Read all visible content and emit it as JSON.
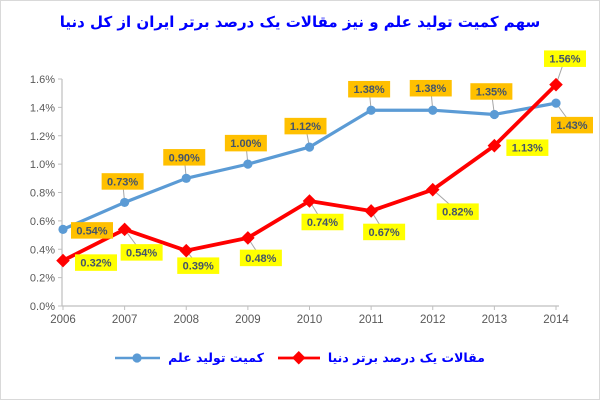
{
  "frame": {
    "bg": "#FFFFFF",
    "border_color": "#D9D9D9"
  },
  "title": {
    "text": "سهم کمیت تولید علم و نیز مقالات یک درصد برتر ایران از کل دنیا",
    "color": "#0000FF"
  },
  "chart_data": {
    "type": "line",
    "title": "سهم کمیت تولید علم و نیز مقالات یک درصد برتر ایران از کل دنیا",
    "categories": [
      "2006",
      "2007",
      "2008",
      "2009",
      "2010",
      "2011",
      "2012",
      "2013",
      "2014"
    ],
    "series": [
      {
        "name": "کمیت تولید علم",
        "color": "#5B9BD5",
        "marker": "circle",
        "label_bg": "#FFC000",
        "values": [
          0.54,
          0.73,
          0.9,
          1.0,
          1.12,
          1.38,
          1.38,
          1.35,
          1.43
        ],
        "labels": [
          "0.54%",
          "0.73%",
          "0.90%",
          "1.00%",
          "1.12%",
          "1.38%",
          "1.38%",
          "1.35%",
          "1.43%"
        ],
        "label_offsets": [
          [
            29,
            1
          ],
          [
            -2,
            -21
          ],
          [
            -2,
            -21
          ],
          [
            -2,
            -21
          ],
          [
            -4,
            -21
          ],
          [
            -2,
            -21
          ],
          [
            -2,
            -22
          ],
          [
            -3,
            -23
          ],
          [
            16,
            22
          ]
        ]
      },
      {
        "name": "مقالات یک درصد برتر دنیا",
        "color": "#FF0000",
        "marker": "diamond",
        "label_bg": "#FFFF00",
        "values": [
          0.32,
          0.54,
          0.39,
          0.48,
          0.74,
          0.67,
          0.82,
          1.13,
          1.56
        ],
        "labels": [
          "0.32%",
          "0.54%",
          "0.39%",
          "0.48%",
          "0.74%",
          "0.67%",
          "0.82%",
          "1.13%",
          "1.56%"
        ],
        "label_offsets": [
          [
            33,
            2
          ],
          [
            17,
            23
          ],
          [
            12,
            15
          ],
          [
            13,
            20
          ],
          [
            13,
            21
          ],
          [
            13,
            21
          ],
          [
            25,
            22
          ],
          [
            33,
            2
          ],
          [
            9,
            -26
          ]
        ]
      }
    ],
    "xlabel": "",
    "ylabel": "",
    "ylim": [
      0,
      1.6
    ],
    "ytick_step": 0.2,
    "ytick_labels": [
      "0.0%",
      "0.2%",
      "0.4%",
      "0.6%",
      "0.8%",
      "1.0%",
      "1.2%",
      "1.4%",
      "1.6%"
    ],
    "grid": false,
    "legend_position": "bottom",
    "axis_color": "#BFBFBF",
    "tick_label_color": "#595959",
    "data_label_color": "#44546A",
    "leader_color": "#A6A6A6"
  },
  "legend": {
    "text_color": "#0000FF",
    "items": [
      {
        "label": "کمیت تولید علم",
        "color": "#5B9BD5",
        "marker": "circle"
      },
      {
        "label": "مقالات یک درصد برتر دنیا",
        "color": "#FF0000",
        "marker": "diamond"
      }
    ]
  }
}
